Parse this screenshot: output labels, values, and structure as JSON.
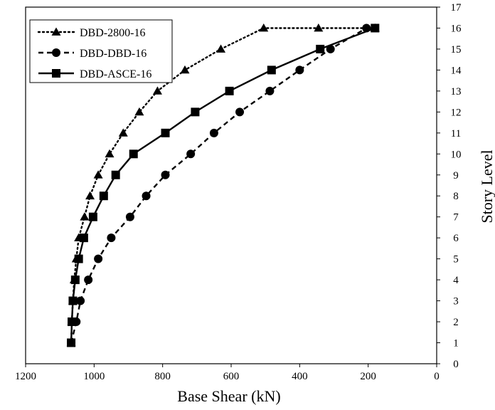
{
  "chart_data": {
    "type": "line",
    "xlabel": "Base Shear (kN)",
    "ylabel": "Story Level",
    "xlim": [
      1200,
      0
    ],
    "ylim": [
      0,
      17
    ],
    "x_reversed": true,
    "y_axis_side": "right",
    "x_ticks": [
      1200,
      1000,
      800,
      600,
      400,
      200,
      0
    ],
    "y_ticks": [
      0,
      1,
      2,
      3,
      4,
      5,
      6,
      7,
      8,
      9,
      10,
      11,
      12,
      13,
      14,
      15,
      16,
      17
    ],
    "grid": false,
    "legend_position": "top-left",
    "series": [
      {
        "name": "DBD-2800-16",
        "line_style": "dotted",
        "marker": "triangle",
        "color": "#000000",
        "x": [
          1067,
          1065,
          1062,
          1058,
          1052,
          1045,
          1028,
          1012,
          988,
          955,
          915,
          868,
          815,
          735,
          630,
          505,
          345,
          180
        ],
        "y": [
          1,
          2,
          3,
          4,
          5,
          6,
          7,
          8,
          9,
          10,
          11,
          12,
          13,
          14,
          15,
          16,
          16,
          16
        ]
      },
      {
        "name": "DBD-DBD-16",
        "line_style": "dashed",
        "marker": "circle",
        "color": "#000000",
        "x": [
          1067,
          1052,
          1040,
          1017,
          988,
          950,
          895,
          848,
          792,
          718,
          650,
          575,
          487,
          400,
          310,
          205
        ],
        "y": [
          1,
          2,
          3,
          4,
          5,
          6,
          7,
          8,
          9,
          10,
          11,
          12,
          13,
          14,
          15,
          16
        ]
      },
      {
        "name": "DBD-ASCE-16",
        "line_style": "solid",
        "marker": "square",
        "color": "#000000",
        "x": [
          1067,
          1065,
          1062,
          1055,
          1045,
          1030,
          1003,
          972,
          937,
          885,
          792,
          705,
          605,
          482,
          340,
          180
        ],
        "y": [
          1,
          2,
          3,
          4,
          5,
          6,
          7,
          8,
          9,
          10,
          11,
          12,
          13,
          14,
          15,
          16
        ]
      }
    ]
  }
}
